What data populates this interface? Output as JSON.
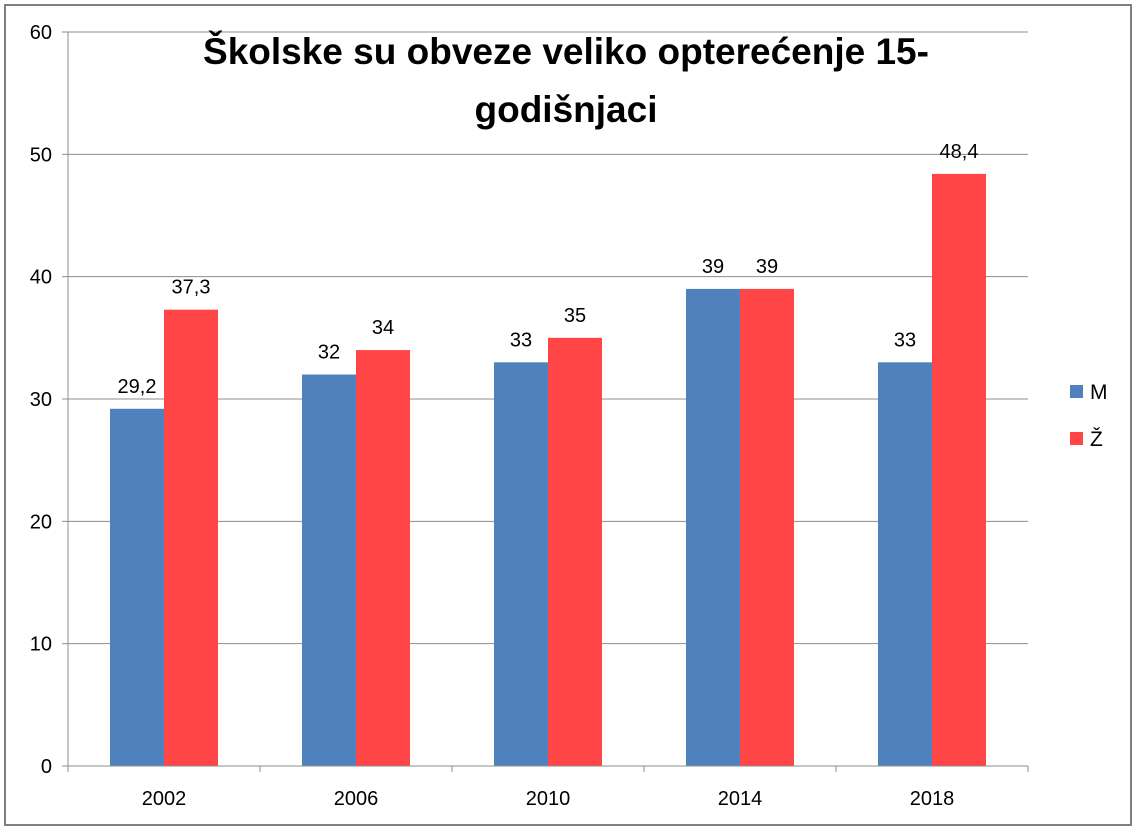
{
  "chart_data": {
    "type": "bar",
    "title": "Školske su obveze veliko opterećenje 15-godišnjaci",
    "title_lines": [
      "Školske su obveze veliko opterećenje 15-",
      "godišnjaci"
    ],
    "categories": [
      "2002",
      "2006",
      "2010",
      "2014",
      "2018"
    ],
    "series": [
      {
        "name": "M",
        "color": "#4f81bd",
        "values": [
          29.2,
          32,
          33,
          39,
          33
        ],
        "labels": [
          "29,2",
          "32",
          "33",
          "39",
          "33"
        ]
      },
      {
        "name": "Ž",
        "color": "#ff4545",
        "values": [
          37.3,
          34,
          35,
          39,
          48.4
        ],
        "labels": [
          "37,3",
          "34",
          "35",
          "39",
          "48,4"
        ]
      }
    ],
    "ylim": [
      0,
      60
    ],
    "yticks": [
      0,
      10,
      20,
      30,
      40,
      50,
      60
    ],
    "ytick_labels": [
      "0",
      "10",
      "20",
      "30",
      "40",
      "50",
      "60"
    ],
    "grid": true,
    "legend": "right"
  }
}
